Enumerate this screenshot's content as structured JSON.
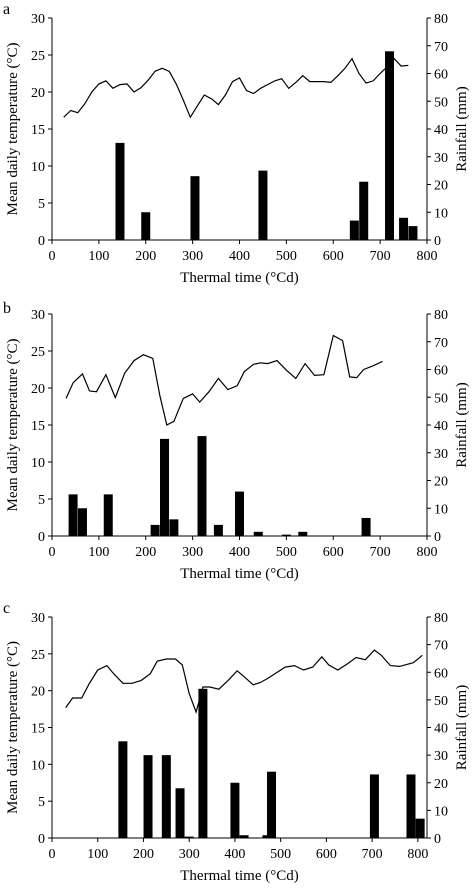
{
  "chart_data": [
    {
      "type": "bar",
      "panel_label": "a",
      "xlabel": "Thermal time (°Cd)",
      "ylabel": "Mean daily temperature (°C)",
      "y2label": "Rainfall (mm)",
      "xlim": [
        0,
        800
      ],
      "xticks": [
        0,
        100,
        200,
        300,
        400,
        500,
        600,
        700,
        800
      ],
      "ylim": [
        0,
        30
      ],
      "yticks": [
        0,
        5,
        10,
        15,
        20,
        25,
        30
      ],
      "y2lim": [
        0,
        80
      ],
      "y2ticks": [
        0,
        10,
        20,
        30,
        40,
        50,
        60,
        70,
        80
      ],
      "series": [
        {
          "type": "line",
          "axis": "left",
          "x": [
            25,
            40,
            55,
            70,
            85,
            100,
            115,
            130,
            145,
            160,
            175,
            190,
            205,
            220,
            235,
            250,
            265,
            280,
            295,
            310,
            325,
            340,
            355,
            370,
            385,
            400,
            415,
            430,
            445,
            460,
            475,
            490,
            505,
            520,
            535,
            550,
            565,
            580,
            595,
            610,
            625,
            640,
            655,
            670,
            685,
            700,
            715,
            730,
            745,
            760
          ],
          "y": [
            16.6,
            17.5,
            17.2,
            18.4,
            20.0,
            21.1,
            21.5,
            20.5,
            21.0,
            21.1,
            20.0,
            20.6,
            21.6,
            22.8,
            23.2,
            22.8,
            21.1,
            18.9,
            16.6,
            18.1,
            19.6,
            19.1,
            18.3,
            19.6,
            21.4,
            21.9,
            20.2,
            19.8,
            20.5,
            21.0,
            21.5,
            21.8,
            20.5,
            21.3,
            22.2,
            21.4,
            21.4,
            21.4,
            21.3,
            22.2,
            23.2,
            24.5,
            22.5,
            21.2,
            21.5,
            22.5,
            23.4,
            24.5,
            23.5,
            23.6
          ]
        },
        {
          "type": "bar",
          "axis": "right",
          "x": [
            145,
            200,
            305,
            450,
            645,
            665,
            720,
            750,
            770
          ],
          "values": [
            35,
            10,
            23,
            25,
            7,
            21,
            68,
            8,
            5
          ]
        }
      ]
    },
    {
      "type": "bar",
      "panel_label": "b",
      "xlabel": "Thermal time (°Cd)",
      "ylabel": "Mean daily temperature (°C)",
      "y2label": "Rainfall (mm)",
      "xlim": [
        0,
        800
      ],
      "xticks": [
        0,
        100,
        200,
        300,
        400,
        500,
        600,
        700,
        800
      ],
      "ylim": [
        0,
        30
      ],
      "yticks": [
        0,
        5,
        10,
        15,
        20,
        25,
        30
      ],
      "y2lim": [
        0,
        80
      ],
      "y2ticks": [
        0,
        10,
        20,
        30,
        40,
        50,
        60,
        70,
        80
      ],
      "series": [
        {
          "type": "line",
          "axis": "left",
          "x": [
            30,
            45,
            65,
            80,
            95,
            115,
            135,
            155,
            175,
            195,
            215,
            230,
            245,
            260,
            280,
            300,
            315,
            335,
            355,
            375,
            395,
            410,
            430,
            445,
            460,
            480,
            500,
            520,
            540,
            560,
            580,
            600,
            620,
            635,
            650,
            665,
            685,
            705
          ],
          "y": [
            18.6,
            20.7,
            21.9,
            19.6,
            19.5,
            21.8,
            18.7,
            22.0,
            23.7,
            24.5,
            24.0,
            19.0,
            15.0,
            15.5,
            18.6,
            19.2,
            18.1,
            19.5,
            21.3,
            19.8,
            20.3,
            22.2,
            23.2,
            23.4,
            23.3,
            23.7,
            22.4,
            21.3,
            23.3,
            21.7,
            21.8,
            27.1,
            26.4,
            21.5,
            21.4,
            22.5,
            23.0,
            23.6
          ]
        },
        {
          "type": "bar",
          "axis": "right",
          "x": [
            45,
            65,
            120,
            220,
            240,
            260,
            320,
            355,
            400,
            440,
            500,
            535,
            670
          ],
          "values": [
            15,
            10,
            15,
            4,
            35,
            6,
            36,
            4,
            16,
            1.5,
            0.5,
            1.5,
            6.5
          ]
        }
      ]
    },
    {
      "type": "bar",
      "panel_label": "c",
      "xlabel": "Thermal time (°Cd)",
      "ylabel": "Mean daily temperature (°C)",
      "y2label": "Rainfall (mm)",
      "xlim": [
        0,
        820
      ],
      "xticks": [
        0,
        100,
        200,
        300,
        400,
        500,
        600,
        700,
        800
      ],
      "ylim": [
        0,
        30
      ],
      "yticks": [
        0,
        5,
        10,
        15,
        20,
        25,
        30
      ],
      "y2lim": [
        0,
        80
      ],
      "y2ticks": [
        0,
        10,
        20,
        30,
        40,
        50,
        60,
        70,
        80
      ],
      "series": [
        {
          "type": "line",
          "axis": "left",
          "x": [
            30,
            45,
            65,
            80,
            100,
            120,
            135,
            155,
            175,
            195,
            215,
            230,
            250,
            270,
            285,
            300,
            315,
            330,
            345,
            365,
            385,
            405,
            420,
            440,
            455,
            470,
            490,
            510,
            530,
            550,
            570,
            590,
            605,
            625,
            645,
            665,
            685,
            705,
            720,
            740,
            760,
            790,
            810
          ],
          "y": [
            17.7,
            19.0,
            19.0,
            20.8,
            22.8,
            23.4,
            22.3,
            21.0,
            21.0,
            21.4,
            22.3,
            24.0,
            24.3,
            24.3,
            23.5,
            19.6,
            17.1,
            20.5,
            20.5,
            20.2,
            21.4,
            22.7,
            21.9,
            20.8,
            21.1,
            21.6,
            22.4,
            23.2,
            23.4,
            22.8,
            23.2,
            24.6,
            23.5,
            22.8,
            23.6,
            24.5,
            24.2,
            25.5,
            24.8,
            23.4,
            23.3,
            23.8,
            24.8
          ]
        },
        {
          "type": "bar",
          "axis": "right",
          "x": [
            155,
            210,
            250,
            280,
            300,
            330,
            400,
            420,
            470,
            480,
            705,
            785,
            805
          ],
          "values": [
            35,
            30,
            30,
            18,
            0.5,
            54,
            20,
            1,
            1,
            24,
            23,
            23,
            7
          ]
        }
      ]
    }
  ]
}
